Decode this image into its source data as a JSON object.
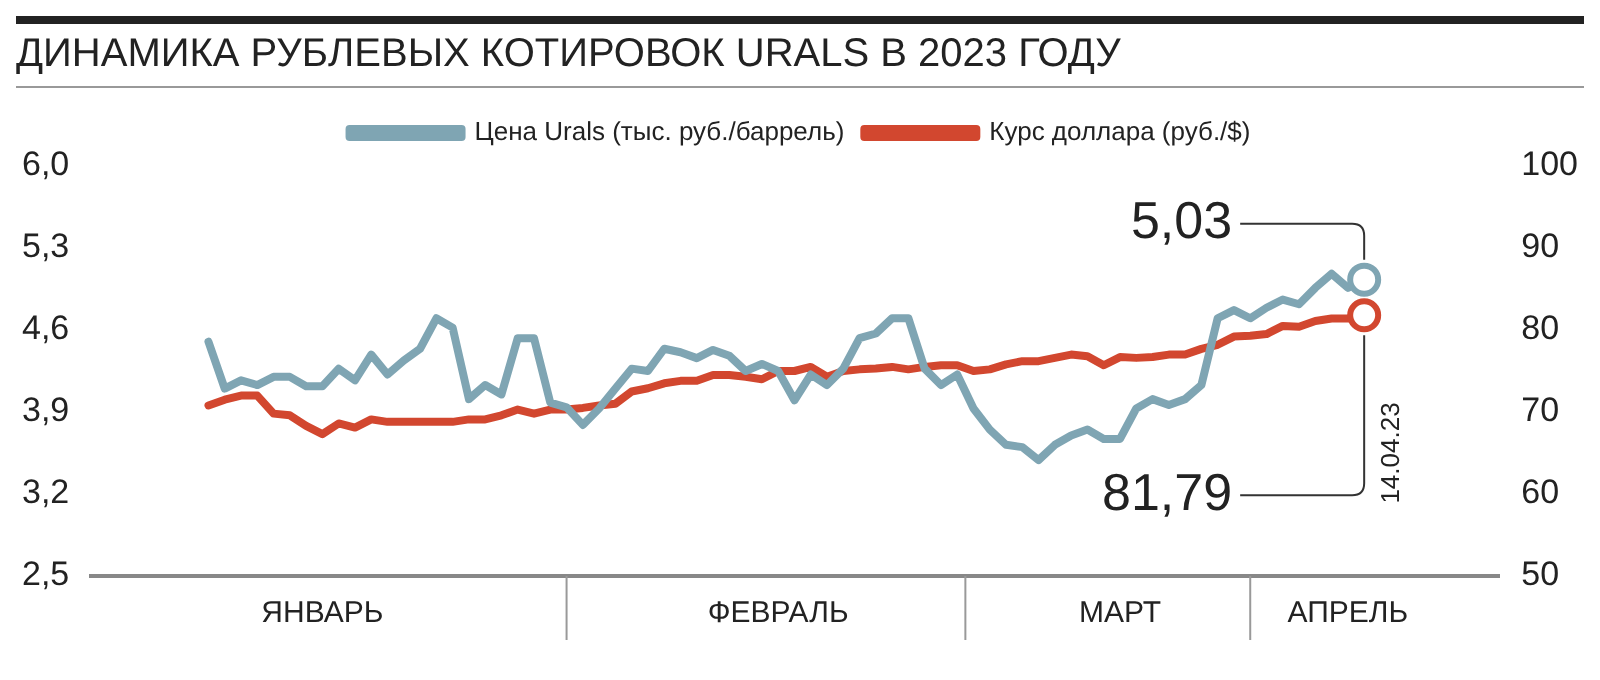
{
  "chart_data": {
    "type": "line",
    "title": "ДИНАМИКА РУБЛЕВЫХ КОТИРОВОК URALS В 2023 ГОДУ",
    "categories": [
      null,
      null,
      null,
      null,
      null,
      null,
      null,
      "ЯНВАРЬ",
      null,
      null,
      null,
      null,
      null,
      null,
      null,
      null,
      null,
      null,
      null,
      null,
      null,
      null,
      null,
      null,
      null,
      null,
      null,
      null,
      null,
      null,
      null,
      null,
      null,
      null,
      null,
      "ФЕВРАЛЬ",
      null,
      null,
      null,
      null,
      null,
      null,
      null,
      null,
      null,
      null,
      null,
      null,
      null,
      null,
      null,
      null,
      null,
      null,
      null,
      null,
      "МАРТ",
      null,
      null,
      null,
      null,
      null,
      null,
      null,
      null,
      null,
      null,
      null,
      null,
      null,
      "АПРЕЛЬ",
      null
    ],
    "series": [
      {
        "name": "Цена Urals (тыс. руб./баррель)",
        "color": "#7fa5b3",
        "axis": "y",
        "values": [
          4.5,
          4.1,
          4.17,
          4.13,
          4.2,
          4.2,
          4.12,
          4.12,
          4.27,
          4.17,
          4.39,
          4.22,
          4.34,
          4.44,
          4.7,
          4.62,
          4.01,
          4.13,
          4.05,
          4.53,
          4.53,
          3.98,
          3.94,
          3.79,
          3.93,
          4.1,
          4.27,
          4.25,
          4.44,
          4.41,
          4.36,
          4.43,
          4.38,
          4.25,
          4.31,
          4.25,
          4.0,
          4.22,
          4.13,
          4.27,
          4.53,
          4.57,
          4.7,
          4.7,
          4.27,
          4.13,
          4.22,
          3.93,
          3.75,
          3.62,
          3.6,
          3.49,
          3.62,
          3.7,
          3.75,
          3.67,
          3.67,
          3.93,
          4.01,
          3.96,
          4.01,
          4.13,
          4.7,
          4.77,
          4.7,
          4.79,
          4.86,
          4.82,
          4.96,
          5.08,
          4.96,
          5.03
        ],
        "value_labels": [
          null,
          null,
          null,
          null,
          null,
          null,
          null,
          null,
          null,
          null,
          null,
          null,
          null,
          null,
          null,
          null,
          null,
          null,
          null,
          null,
          null,
          null,
          null,
          null,
          null,
          null,
          null,
          null,
          null,
          null,
          null,
          null,
          null,
          null,
          null,
          null,
          null,
          null,
          null,
          null,
          null,
          null,
          null,
          null,
          null,
          null,
          null,
          null,
          null,
          null,
          null,
          null,
          null,
          null,
          null,
          null,
          null,
          null,
          null,
          null,
          null,
          null,
          null,
          null,
          null,
          null,
          null,
          null,
          null,
          null,
          null,
          "5,03"
        ]
      },
      {
        "name": "Курс доллара (руб./$)",
        "color": "#d2472f",
        "axis": "y2",
        "values": [
          70.8,
          71.5,
          72.0,
          72.0,
          69.8,
          69.6,
          68.3,
          67.3,
          68.6,
          68.1,
          69.1,
          68.8,
          68.8,
          68.8,
          68.8,
          68.8,
          69.1,
          69.1,
          69.6,
          70.3,
          69.8,
          70.3,
          70.3,
          70.5,
          70.8,
          71.0,
          72.5,
          72.9,
          73.5,
          73.8,
          73.8,
          74.5,
          74.5,
          74.3,
          74.0,
          75.0,
          75.0,
          75.5,
          74.3,
          75.0,
          75.2,
          75.3,
          75.5,
          75.2,
          75.5,
          75.7,
          75.7,
          75.0,
          75.2,
          75.8,
          76.2,
          76.2,
          76.6,
          77.0,
          76.8,
          75.7,
          76.7,
          76.6,
          76.7,
          77.0,
          77.0,
          77.7,
          78.2,
          79.2,
          79.3,
          79.5,
          80.5,
          80.4,
          81.1,
          81.4,
          81.4,
          81.79
        ],
        "value_labels": [
          null,
          null,
          null,
          null,
          null,
          null,
          null,
          null,
          null,
          null,
          null,
          null,
          null,
          null,
          null,
          null,
          null,
          null,
          null,
          null,
          null,
          null,
          null,
          null,
          null,
          null,
          null,
          null,
          null,
          null,
          null,
          null,
          null,
          null,
          null,
          null,
          null,
          null,
          null,
          null,
          null,
          null,
          null,
          null,
          null,
          null,
          null,
          null,
          null,
          null,
          null,
          null,
          null,
          null,
          null,
          null,
          null,
          null,
          null,
          null,
          null,
          null,
          null,
          null,
          null,
          null,
          null,
          null,
          null,
          null,
          null,
          "81,79"
        ]
      }
    ],
    "ylim": [
      2.5,
      6.0
    ],
    "yticks": [
      {
        "value": 2.5,
        "label": "2,5"
      },
      {
        "value": 3.2,
        "label": "3,2"
      },
      {
        "value": 3.9,
        "label": "3,9"
      },
      {
        "value": 4.6,
        "label": "4,6"
      },
      {
        "value": 5.3,
        "label": "5,3"
      },
      {
        "value": 6.0,
        "label": "6,0"
      }
    ],
    "y2lim": [
      50,
      100
    ],
    "y2ticks": [
      50,
      60,
      70,
      80,
      90,
      100
    ],
    "annotations": [
      "14.04.23"
    ],
    "legend": "top",
    "grid": false,
    "line_style": "solid"
  }
}
